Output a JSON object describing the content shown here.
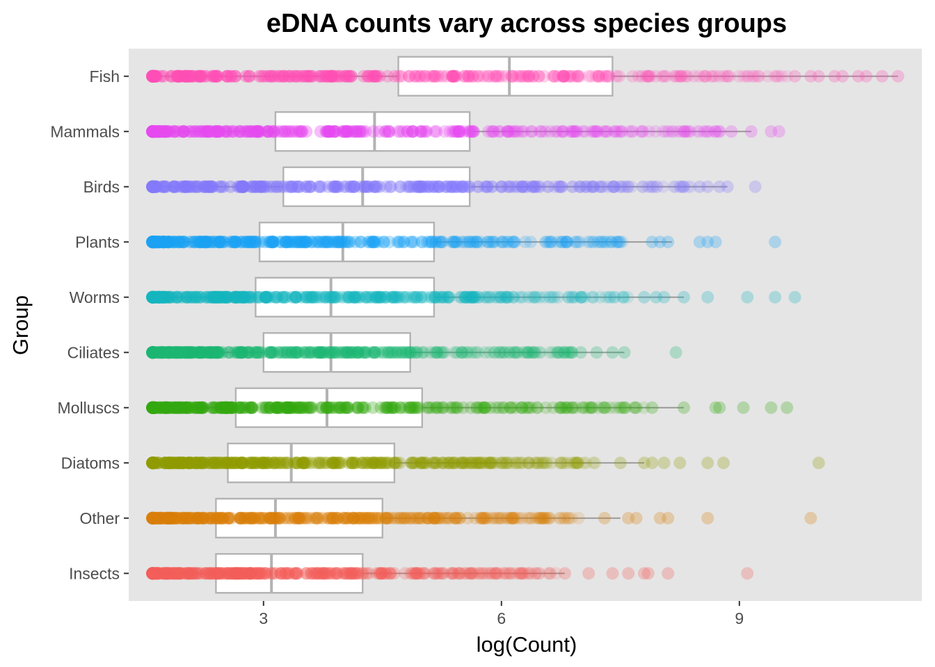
{
  "chart_data": {
    "type": "box",
    "title": "eDNA counts vary across species groups",
    "xlabel": "log(Count)",
    "ylabel": "Group",
    "xlim": [
      1.3,
      11.3
    ],
    "x_ticks": [
      3,
      6,
      9
    ],
    "grid": false,
    "legend": "none",
    "categories": [
      "Fish",
      "Mammals",
      "Birds",
      "Plants",
      "Worms",
      "Ciliates",
      "Molluscs",
      "Diatoms",
      "Other",
      "Insects"
    ],
    "series": [
      {
        "name": "Fish",
        "color": "#FF4FB5",
        "q1": 4.7,
        "median": 6.1,
        "q3": 7.4,
        "whisker_low": 1.6,
        "whisker_high": 11.0,
        "max_dense": 9.6,
        "sparse": [
          9.7,
          9.9,
          10.0,
          10.2,
          10.3,
          10.5,
          10.6,
          10.8,
          11.0
        ]
      },
      {
        "name": "Mammals",
        "color": "#E64AF0",
        "q1": 3.15,
        "median": 4.4,
        "q3": 5.6,
        "whisker_low": 1.6,
        "whisker_high": 9.15,
        "max_dense": 8.8,
        "sparse": [
          8.6,
          8.9,
          9.15,
          9.4,
          9.5
        ]
      },
      {
        "name": "Birds",
        "color": "#8479FA",
        "q1": 3.25,
        "median": 4.25,
        "q3": 5.6,
        "whisker_low": 1.6,
        "whisker_high": 8.85,
        "max_dense": 8.4,
        "sparse": [
          8.3,
          8.5,
          8.6,
          8.75,
          8.85,
          9.2
        ]
      },
      {
        "name": "Plants",
        "color": "#1AA2F4",
        "q1": 2.95,
        "median": 4.0,
        "q3": 5.15,
        "whisker_low": 1.6,
        "whisker_high": 8.15,
        "max_dense": 7.6,
        "sparse": [
          7.9,
          8.0,
          8.1,
          8.5,
          8.6,
          8.7,
          9.45
        ]
      },
      {
        "name": "Worms",
        "color": "#14B5BE",
        "q1": 2.9,
        "median": 3.85,
        "q3": 5.15,
        "whisker_low": 1.6,
        "whisker_high": 8.3,
        "max_dense": 7.6,
        "sparse": [
          7.8,
          7.95,
          8.05,
          8.3,
          8.6,
          9.1,
          9.45,
          9.7
        ]
      },
      {
        "name": "Ciliates",
        "color": "#1BB672",
        "q1": 3.0,
        "median": 3.85,
        "q3": 4.85,
        "whisker_low": 1.6,
        "whisker_high": 7.55,
        "max_dense": 6.9,
        "sparse": [
          7.0,
          7.2,
          7.4,
          7.55,
          8.2
        ]
      },
      {
        "name": "Molluscs",
        "color": "#33A80F",
        "q1": 2.65,
        "median": 3.8,
        "q3": 5.0,
        "whisker_low": 1.6,
        "whisker_high": 8.3,
        "max_dense": 7.8,
        "sparse": [
          7.9,
          8.3,
          8.7,
          8.75,
          9.05,
          9.4,
          9.6
        ]
      },
      {
        "name": "Diatoms",
        "color": "#8F9B00",
        "q1": 2.55,
        "median": 3.35,
        "q3": 4.65,
        "whisker_low": 1.6,
        "whisker_high": 7.8,
        "max_dense": 7.2,
        "sparse": [
          7.5,
          7.8,
          7.9,
          8.05,
          8.25,
          8.6,
          8.8,
          10.0
        ]
      },
      {
        "name": "Other",
        "color": "#D97E08",
        "q1": 2.4,
        "median": 3.15,
        "q3": 4.5,
        "whisker_low": 1.6,
        "whisker_high": 7.5,
        "max_dense": 7.0,
        "sparse": [
          7.3,
          7.6,
          7.7,
          8.0,
          8.1,
          8.6,
          9.9
        ]
      },
      {
        "name": "Insects",
        "color": "#F35E5A",
        "q1": 2.4,
        "median": 3.1,
        "q3": 4.25,
        "whisker_low": 1.6,
        "whisker_high": 6.8,
        "max_dense": 6.7,
        "sparse": [
          6.8,
          7.1,
          7.4,
          7.6,
          7.8,
          7.85,
          8.1,
          9.1
        ]
      }
    ]
  }
}
